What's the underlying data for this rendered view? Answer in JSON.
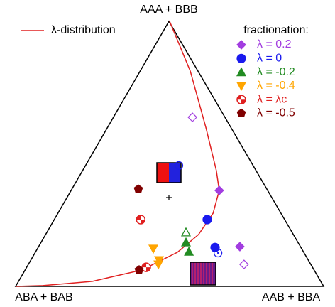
{
  "chart_data": {
    "type": "ternary",
    "vertex_labels": {
      "top": "AAA + BBB",
      "left": "ABA + BAB",
      "right": "AAB + BBA"
    },
    "legend_title": "fractionation:",
    "curve": {
      "name": "λ-distribution",
      "color": "#e02020",
      "top": [
        1,
        0.812,
        0.598,
        0.437,
        0.362,
        0.276,
        0.196,
        0.129,
        0.062,
        0.019,
        0.003,
        0
      ],
      "right": [
        0,
        0.161,
        0.319,
        0.433,
        0.48,
        0.503,
        0.496,
        0.461,
        0.379,
        0.24,
        0.087,
        0
      ]
    },
    "series": [
      {
        "name": "λ = 0.2",
        "color": "#a23de0",
        "marker": "diamond",
        "top": [
          0.362,
          0.638,
          0.15,
          0.083
        ],
        "right": [
          0.48,
          0.255,
          0.653,
          0.7
        ],
        "filled": [
          true,
          false,
          true,
          false
        ]
      },
      {
        "name": "λ = 0",
        "color": "#1a1aee",
        "marker": "circle",
        "top": [
          0.252,
          0.147,
          0.456,
          0.126
        ],
        "right": [
          0.496,
          0.574,
          0.302,
          0.594
        ],
        "filled": [
          true,
          true,
          false,
          false
        ]
      },
      {
        "name": "λ = -0.2",
        "color": "#228b22",
        "marker": "triangle-up",
        "top": [
          0.204,
          0.166,
          0.131
        ],
        "right": [
          0.451,
          0.47,
          0.497
        ],
        "filled": [
          false,
          true,
          true
        ]
      },
      {
        "name": "λ = -0.4",
        "color": "#ffa500",
        "marker": "triangle-down",
        "top": [
          0.142,
          0.099,
          0.083
        ],
        "right": [
          0.376,
          0.416,
          0.422
        ],
        "filled": [
          true,
          true,
          true
        ]
      },
      {
        "name": "λ = λc",
        "color": "#e02020",
        "marker": "quadrant",
        "top": [
          0.252,
          0.072
        ],
        "right": [
          0.28,
          0.388
        ],
        "filled": [
          true,
          true
        ]
      },
      {
        "name": "λ = -0.5",
        "color": "#800000",
        "marker": "pentagon",
        "top": [
          0.367,
          0.062
        ],
        "right": [
          0.215,
          0.37
        ],
        "filled": [
          true,
          true
        ]
      }
    ]
  }
}
